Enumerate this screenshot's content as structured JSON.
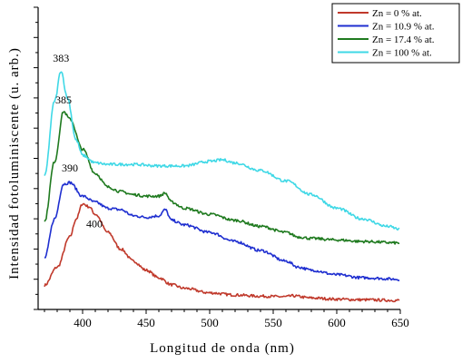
{
  "chart_data": {
    "type": "line",
    "title": "",
    "xlabel": "Longitud de onda (nm)",
    "ylabel": "Intensidad fotoluminiscente (u. arb.)",
    "xlim": [
      365,
      650
    ],
    "ylim": [
      0,
      10
    ],
    "x_ticks": [
      400,
      450,
      500,
      550,
      600,
      650
    ],
    "y_tick_labels_shown": false,
    "grid": false,
    "legend_position": "top-right",
    "series": [
      {
        "name": "Zn = 0 % at.",
        "color": "#c0392b",
        "x": [
          370,
          380,
          390,
          395,
          400,
          405,
          410,
          420,
          430,
          440,
          450,
          460,
          470,
          480,
          500,
          520,
          540,
          560,
          565,
          580,
          600,
          620,
          650
        ],
        "y": [
          0.8,
          1.4,
          2.4,
          3.0,
          3.5,
          3.4,
          3.15,
          2.55,
          2.0,
          1.6,
          1.3,
          1.05,
          0.82,
          0.7,
          0.55,
          0.48,
          0.44,
          0.42,
          0.45,
          0.38,
          0.34,
          0.32,
          0.3
        ]
      },
      {
        "name": "Zn = 10.9 % at.",
        "color": "#1f2fd0",
        "x": [
          370,
          378,
          385,
          390,
          400,
          410,
          420,
          430,
          440,
          450,
          460,
          465,
          470,
          480,
          500,
          520,
          540,
          560,
          570,
          580,
          600,
          620,
          650
        ],
        "y": [
          1.7,
          3.0,
          4.15,
          4.2,
          3.75,
          3.55,
          3.35,
          3.3,
          3.1,
          3.05,
          3.1,
          3.3,
          2.95,
          2.8,
          2.55,
          2.25,
          1.95,
          1.6,
          1.4,
          1.3,
          1.15,
          1.05,
          1.0
        ]
      },
      {
        "name": "Zn = 17.4 % at.",
        "color": "#1f7a1f",
        "x": [
          370,
          378,
          385,
          390,
          400,
          410,
          420,
          430,
          440,
          450,
          460,
          465,
          470,
          480,
          500,
          520,
          540,
          560,
          570,
          580,
          600,
          620,
          650
        ],
        "y": [
          2.9,
          4.9,
          6.55,
          6.3,
          5.3,
          4.5,
          4.05,
          3.9,
          3.8,
          3.75,
          3.75,
          3.85,
          3.55,
          3.35,
          3.15,
          2.95,
          2.75,
          2.55,
          2.4,
          2.35,
          2.3,
          2.25,
          2.2
        ]
      },
      {
        "name": "Zn = 100 % at.",
        "color": "#3fd8e6",
        "x": [
          370,
          378,
          383,
          388,
          395,
          400,
          410,
          420,
          440,
          460,
          480,
          500,
          510,
          520,
          540,
          560,
          580,
          600,
          620,
          640,
          650
        ],
        "y": [
          4.4,
          6.9,
          7.9,
          7.0,
          5.6,
          5.1,
          4.85,
          4.8,
          4.8,
          4.75,
          4.75,
          4.9,
          4.95,
          4.85,
          4.6,
          4.25,
          3.8,
          3.35,
          3.0,
          2.75,
          2.65
        ]
      }
    ],
    "annotations": [
      {
        "text": "383",
        "x": 383,
        "series": 3
      },
      {
        "text": "385",
        "x": 385,
        "series": 2
      },
      {
        "text": "390",
        "x": 390,
        "series": 1
      },
      {
        "text": "400",
        "x": 400,
        "series": 0
      }
    ]
  }
}
